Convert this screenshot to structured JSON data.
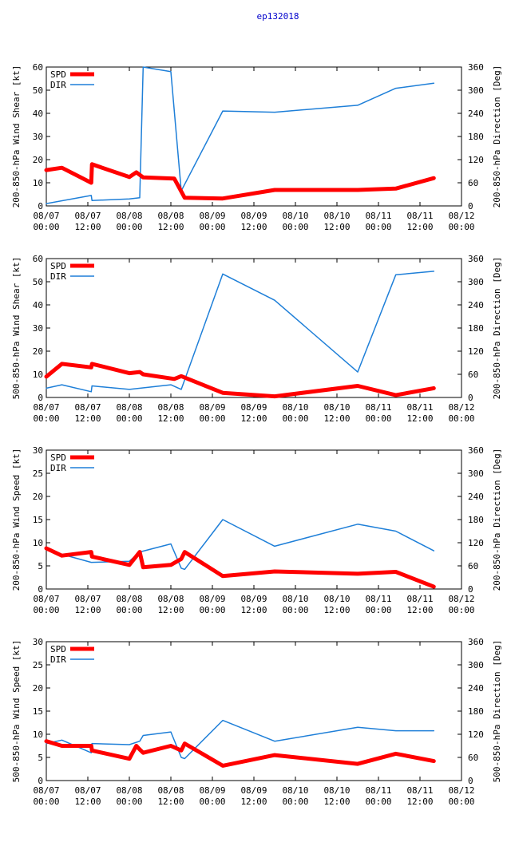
{
  "title": "ep132018",
  "colors": {
    "spd": "#ff0000",
    "dir": "#1e7fd8",
    "title": "#0000cc"
  },
  "x_ticks": [
    [
      "08/07",
      "00:00"
    ],
    [
      "08/07",
      "12:00"
    ],
    [
      "08/08",
      "00:00"
    ],
    [
      "08/08",
      "12:00"
    ],
    [
      "08/09",
      "00:00"
    ],
    [
      "08/09",
      "12:00"
    ],
    [
      "08/10",
      "00:00"
    ],
    [
      "08/10",
      "12:00"
    ],
    [
      "08/11",
      "00:00"
    ],
    [
      "08/11",
      "12:00"
    ],
    [
      "08/12",
      "00:00"
    ]
  ],
  "chart_data": [
    {
      "type": "line",
      "ylabel": "200-850-hPa Wind Shear [kt]",
      "y2label": "200-850-hPa Direction [Deg]",
      "xlim": [
        0,
        120
      ],
      "ylim": [
        0,
        60
      ],
      "yticks": [
        0,
        10,
        20,
        30,
        40,
        50,
        60
      ],
      "y2lim": [
        0,
        360
      ],
      "y2ticks": [
        0,
        60,
        120,
        180,
        240,
        300,
        360
      ],
      "legend": [
        "SPD",
        "DIR"
      ],
      "series": [
        {
          "name": "SPD",
          "axis": "left",
          "x": [
            0,
            4.5,
            13,
            13.2,
            24,
            26,
            28,
            37,
            40,
            51,
            66,
            90,
            101,
            112
          ],
          "values": [
            15.5,
            16.5,
            10,
            18,
            12.5,
            14.5,
            12.3,
            11.8,
            3.5,
            3.2,
            6.9,
            6.9,
            7.5,
            12
          ]
        },
        {
          "name": "DIR",
          "axis": "right",
          "x": [
            0,
            13,
            13.2,
            24,
            27,
            28,
            36,
            39,
            51,
            66,
            90,
            101,
            112
          ],
          "values": [
            6,
            27,
            14,
            18,
            21,
            360,
            348,
            39,
            246,
            243,
            261,
            305,
            318
          ]
        }
      ]
    },
    {
      "type": "line",
      "ylabel": "500-850-hPa Wind Shear [kt]",
      "y2label": "200-850-hPa Direction [Deg]",
      "xlim": [
        0,
        120
      ],
      "ylim": [
        0,
        60
      ],
      "yticks": [
        0,
        10,
        20,
        30,
        40,
        50,
        60
      ],
      "y2lim": [
        0,
        360
      ],
      "y2ticks": [
        0,
        60,
        120,
        180,
        240,
        300,
        360
      ],
      "legend": [
        "SPD",
        "DIR"
      ],
      "series": [
        {
          "name": "SPD",
          "axis": "left",
          "x": [
            0,
            4.5,
            13,
            13.2,
            24,
            27,
            28,
            37,
            39,
            51,
            66,
            90,
            101,
            112
          ],
          "values": [
            9,
            14.5,
            13,
            14.5,
            10.5,
            11,
            10,
            8,
            9.2,
            2,
            0.5,
            5,
            1,
            4
          ]
        },
        {
          "name": "DIR",
          "axis": "right",
          "x": [
            0,
            4.5,
            13,
            13.2,
            24,
            36,
            39,
            51,
            66,
            90,
            101,
            112
          ],
          "values": [
            24,
            33,
            15,
            30,
            21,
            33,
            21,
            320,
            252,
            66,
            318,
            327
          ]
        }
      ]
    },
    {
      "type": "line",
      "ylabel": "200-850-hPa Wind Speed [kt]",
      "y2label": "200-850-hPa Direction [Deg]",
      "xlim": [
        0,
        120
      ],
      "ylim": [
        0,
        30
      ],
      "yticks": [
        0,
        5,
        10,
        15,
        20,
        25,
        30
      ],
      "y2lim": [
        0,
        360
      ],
      "y2ticks": [
        0,
        60,
        120,
        180,
        240,
        300,
        360
      ],
      "legend": [
        "SPD",
        "DIR"
      ],
      "series": [
        {
          "name": "SPD",
          "axis": "left",
          "x": [
            0,
            4.5,
            13,
            13.2,
            24,
            27,
            28,
            36,
            39,
            40,
            51,
            66,
            90,
            101,
            112
          ],
          "values": [
            8.8,
            7.2,
            8,
            7,
            5.2,
            8,
            4.7,
            5.2,
            6.5,
            8,
            2.8,
            3.8,
            3.3,
            3.7,
            0.5
          ]
        },
        {
          "name": "DIR",
          "axis": "right",
          "x": [
            0,
            4.5,
            13,
            24,
            27,
            36,
            39,
            40,
            51,
            66,
            90,
            101,
            112
          ],
          "values": [
            102,
            90,
            69,
            72,
            96,
            117,
            54,
            51,
            180,
            111,
            168,
            150,
            99
          ]
        }
      ]
    },
    {
      "type": "line",
      "ylabel": "500-850-hPa Wind Speed [kt]",
      "y2label": "500-850-hPa Direction [Deg]",
      "xlim": [
        0,
        120
      ],
      "ylim": [
        0,
        30
      ],
      "yticks": [
        0,
        5,
        10,
        15,
        20,
        25,
        30
      ],
      "y2lim": [
        0,
        360
      ],
      "y2ticks": [
        0,
        60,
        120,
        180,
        240,
        300,
        360
      ],
      "legend": [
        "SPD",
        "DIR"
      ],
      "series": [
        {
          "name": "SPD",
          "axis": "left",
          "x": [
            0,
            4.5,
            13,
            13.2,
            24,
            26,
            27,
            28,
            36,
            39,
            40,
            51,
            66,
            90,
            101,
            112
          ],
          "values": [
            8.5,
            7.5,
            7.5,
            6.5,
            4.7,
            7.5,
            6.7,
            6,
            7.5,
            6.5,
            8,
            3.2,
            5.5,
            3.6,
            5.8,
            4.2
          ]
        },
        {
          "name": "DIR",
          "axis": "right",
          "x": [
            0,
            4.5,
            13,
            13.2,
            24,
            27,
            28,
            36,
            39,
            40,
            51,
            66,
            90,
            101,
            112
          ],
          "values": [
            96,
            105,
            72,
            96,
            93,
            102,
            117,
            126,
            60,
            57,
            156,
            102,
            138,
            129,
            129
          ]
        }
      ]
    }
  ]
}
